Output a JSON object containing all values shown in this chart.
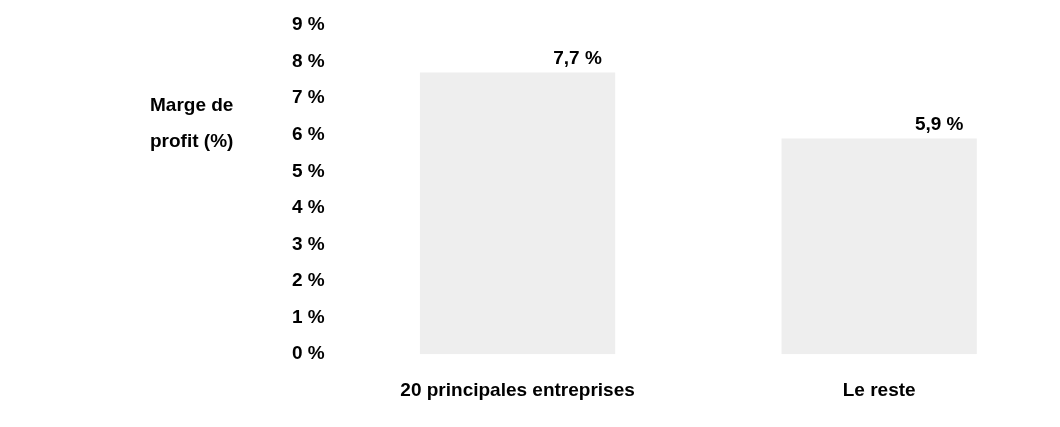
{
  "chart_data": {
    "type": "bar",
    "ylabel": "Marge de profit (%)",
    "categories": [
      "20 principales entreprises",
      "Le reste"
    ],
    "values": [
      7.7,
      5.9
    ],
    "color": "#eeeeee",
    "value_labels": [
      "7,7 %",
      "5,9 %"
    ],
    "ylim": [
      0,
      9
    ],
    "yticks": [
      {
        "value": 0,
        "label": "0 %"
      },
      {
        "value": 1,
        "label": "1 %"
      },
      {
        "value": 2,
        "label": "2 %"
      },
      {
        "value": 3,
        "label": "3 %"
      },
      {
        "value": 4,
        "label": "4 %"
      },
      {
        "value": 5,
        "label": "5 %"
      },
      {
        "value": 6,
        "label": "6 %"
      },
      {
        "value": 7,
        "label": "7 %"
      },
      {
        "value": 8,
        "label": "8 %"
      },
      {
        "value": 9,
        "label": "9 %"
      }
    ],
    "grid": false,
    "legend": false
  }
}
